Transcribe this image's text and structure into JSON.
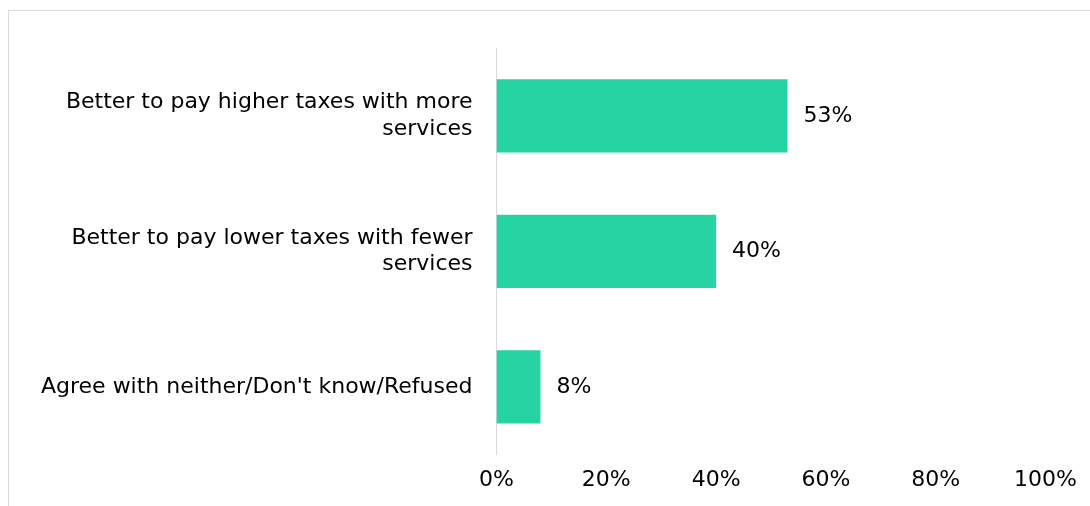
{
  "chart_data": {
    "type": "bar",
    "orientation": "horizontal",
    "categories": [
      "Better to pay higher taxes with more services",
      "Better to pay lower taxes with fewer services",
      "Agree with neither/Don't know/Refused"
    ],
    "values": [
      53,
      40,
      8
    ],
    "color": "#26d3a2",
    "value_labels": [
      "53%",
      "40%",
      "8%"
    ],
    "xlim": [
      0,
      100
    ],
    "xticks": [
      {
        "value": 0,
        "label": "0%"
      },
      {
        "value": 20,
        "label": "20%"
      },
      {
        "value": 40,
        "label": "40%"
      },
      {
        "value": 60,
        "label": "60%"
      },
      {
        "value": 80,
        "label": "80%"
      },
      {
        "value": 100,
        "label": "100%"
      }
    ],
    "grid": false,
    "legend": false
  }
}
